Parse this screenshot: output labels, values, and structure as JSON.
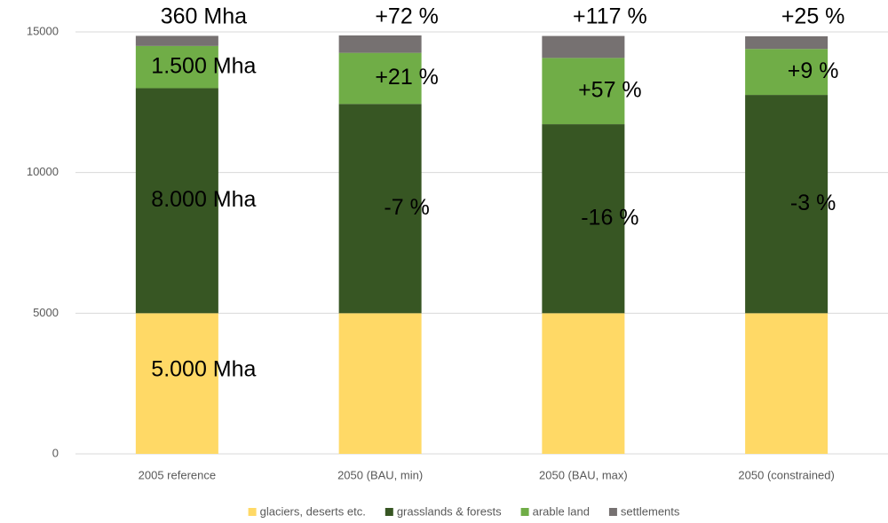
{
  "chart_data": {
    "type": "stacked_bar",
    "categories": [
      "2005 reference",
      "2050 (BAU, min)",
      "2050 (BAU, max)",
      "2050 (constrained)"
    ],
    "series": [
      {
        "name": "glaciers, deserts etc.",
        "color": "#ffd966",
        "values": [
          5000,
          5000,
          5000,
          5000
        ],
        "annotations": [
          "5.000 Mha",
          null,
          null,
          null
        ]
      },
      {
        "name": "grasslands & forests",
        "color": "#375623",
        "values": [
          8000,
          7440,
          6720,
          7760
        ],
        "annotations": [
          "8.000 Mha",
          "-7 %",
          "-16 %",
          "-3 %"
        ]
      },
      {
        "name": "arable land",
        "color": "#70ad47",
        "values": [
          1500,
          1815,
          2355,
          1635
        ],
        "annotations": [
          "1.500 Mha",
          "+21 %",
          "+57 %",
          "+9 %"
        ]
      },
      {
        "name": "settlements",
        "color": "#767171",
        "values": [
          360,
          620,
          781,
          450
        ],
        "annotations": [
          "360 Mha",
          "+72 %",
          "+117 %",
          "+25 %"
        ]
      }
    ],
    "ylim": [
      0,
      15000
    ],
    "yticks": [
      0,
      5000,
      10000,
      15000
    ],
    "grid": true,
    "legend": "bottom"
  }
}
